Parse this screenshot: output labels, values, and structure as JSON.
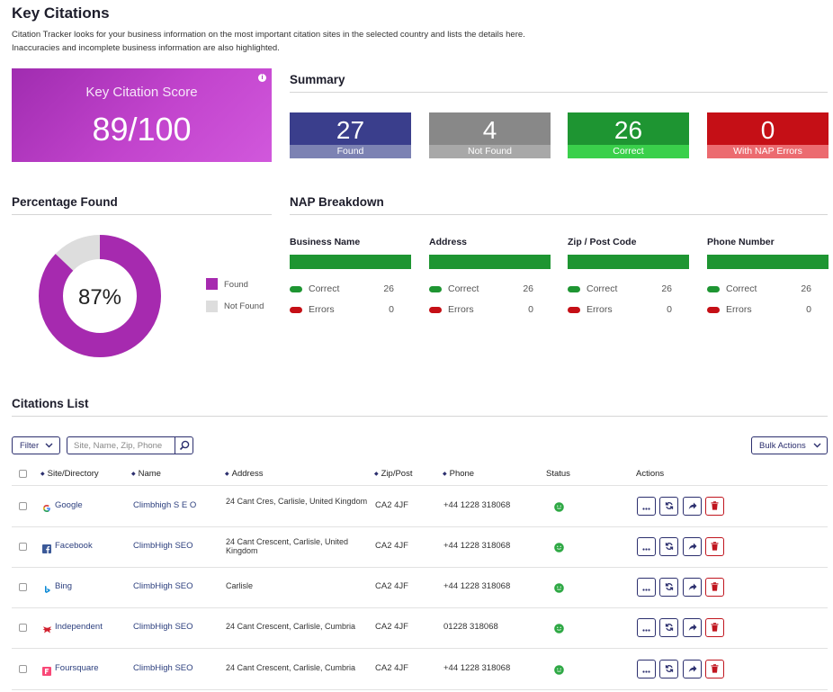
{
  "header": {
    "title": "Key Citations",
    "description": "Citation Tracker looks for your business information on the most important citation sites in the selected country and lists the details here. Inaccuracies and incomplete business information are also highlighted."
  },
  "score": {
    "label": "Key Citation Score",
    "value": "89/100",
    "info": "i"
  },
  "summary": {
    "title": "Summary",
    "cards": [
      {
        "value": "27",
        "label": "Found",
        "top_color": "#3a3e8c",
        "bottom_color": "#7c82b3"
      },
      {
        "value": "4",
        "label": "Not Found",
        "top_color": "#888888",
        "bottom_color": "#a8a8a8"
      },
      {
        "value": "26",
        "label": "Correct",
        "top_color": "#1e9532",
        "bottom_color": "#3ad04b"
      },
      {
        "value": "0",
        "label": "With NAP Errors",
        "top_color": "#c50f16",
        "bottom_color": "#ec6b70"
      }
    ]
  },
  "percentage": {
    "title": "Percentage Found",
    "center_label": "87%",
    "found_fraction": 0.87,
    "found_color": "#a62aaf",
    "not_found_color": "#dddddd",
    "legend": [
      {
        "label": "Found",
        "color": "#a62aaf"
      },
      {
        "label": "Not Found",
        "color": "#dddddd"
      }
    ]
  },
  "nap": {
    "title": "NAP Breakdown",
    "columns": [
      {
        "heading": "Business Name",
        "correct_label": "Correct",
        "correct": "26",
        "errors_label": "Errors",
        "errors": "0"
      },
      {
        "heading": "Address",
        "correct_label": "Correct",
        "correct": "26",
        "errors_label": "Errors",
        "errors": "0"
      },
      {
        "heading": "Zip / Post Code",
        "correct_label": "Correct",
        "correct": "26",
        "errors_label": "Errors",
        "errors": "0"
      },
      {
        "heading": "Phone Number",
        "correct_label": "Correct",
        "correct": "26",
        "errors_label": "Errors",
        "errors": "0"
      }
    ]
  },
  "citations": {
    "title": "Citations List",
    "filter_label": "Filter",
    "search_placeholder": "Site, Name, Zip, Phone",
    "bulk_label": "Bulk Actions",
    "columns": [
      "Site/Directory",
      "Name",
      "Address",
      "Zip/Post",
      "Phone",
      "Status",
      "Actions"
    ],
    "rows": [
      {
        "site": "Google",
        "name": "Climbhigh S E O",
        "address": "24 Cant Cres, Carlisle, United Kingdom",
        "zip": "CA2 4JF",
        "phone": "+44 1228 318068",
        "icon": "google-icon"
      },
      {
        "site": "Facebook",
        "name": "ClimbHigh SEO",
        "address": "24 Cant Crescent, Carlisle, United Kingdom",
        "zip": "CA2 4JF",
        "phone": "+44 1228 318068",
        "icon": "facebook-icon"
      },
      {
        "site": "Bing",
        "name": "ClimbHigh SEO",
        "address": "Carlisle",
        "zip": "CA2 4JF",
        "phone": "+44 1228 318068",
        "icon": "bing-icon"
      },
      {
        "site": "Independent",
        "name": "ClimbHigh SEO",
        "address": "24 Cant Crescent, Carlisle, Cumbria",
        "zip": "CA2 4JF",
        "phone": "01228 318068",
        "icon": "independent-icon"
      },
      {
        "site": "Foursquare",
        "name": "ClimbHigh SEO",
        "address": "24 Cant Crescent, Carlisle, Cumbria",
        "zip": "CA2 4JF",
        "phone": "+44 1228 318068",
        "icon": "foursquare-icon"
      }
    ]
  },
  "icons": {
    "more": "more-icon",
    "refresh": "refresh-icon",
    "share": "share-icon",
    "delete": "trash-icon",
    "search": "search-icon",
    "chevron": "chevron-down-icon",
    "status_ok": "smiley-icon",
    "sort": "sort-icon"
  }
}
